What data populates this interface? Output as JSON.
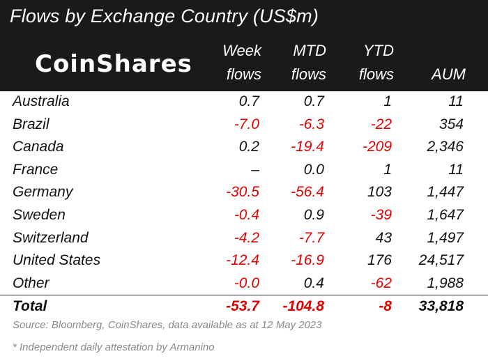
{
  "title": "Flows by Exchange Country (US$m)",
  "logo": "CoinShares",
  "columns": [
    {
      "line1": "Week",
      "line2": "flows"
    },
    {
      "line1": "MTD",
      "line2": "flows"
    },
    {
      "line1": "YTD",
      "line2": "flows"
    },
    {
      "line1": "",
      "line2": "AUM"
    }
  ],
  "rows": [
    {
      "name": "Australia",
      "week": "0.7",
      "mtd": "0.7",
      "ytd": "1",
      "aum": "11"
    },
    {
      "name": "Brazil",
      "week": "-7.0",
      "mtd": "-6.3",
      "ytd": "-22",
      "aum": "354"
    },
    {
      "name": "Canada",
      "week": "0.2",
      "mtd": "-19.4",
      "ytd": "-209",
      "aum": "2,346"
    },
    {
      "name": "France",
      "week": "–",
      "mtd": "0.0",
      "ytd": "1",
      "aum": "11"
    },
    {
      "name": "Germany",
      "week": "-30.5",
      "mtd": "-56.4",
      "ytd": "103",
      "aum": "1,447"
    },
    {
      "name": "Sweden",
      "week": "-0.4",
      "mtd": "0.9",
      "ytd": "-39",
      "aum": "1,647"
    },
    {
      "name": "Switzerland",
      "week": "-4.2",
      "mtd": "-7.7",
      "ytd": "43",
      "aum": "1,497"
    },
    {
      "name": "United States",
      "week": "-12.4",
      "mtd": "-16.9",
      "ytd": "176",
      "aum": "24,517"
    },
    {
      "name": "Other",
      "week": "-0.0",
      "mtd": "0.4",
      "ytd": "-62",
      "aum": "1,988"
    }
  ],
  "total": {
    "name": "Total",
    "week": "-53.7",
    "mtd": "-104.8",
    "ytd": "-8",
    "aum": "33,818"
  },
  "source": "Source: Bloomberg, CoinShares, data available as at 12 May 2023",
  "footnote": "* Independent daily attestation by Armanino",
  "colors": {
    "header_bg": "#1a1a1a",
    "negative": "#e00000",
    "note_text": "#8a8a8a"
  }
}
